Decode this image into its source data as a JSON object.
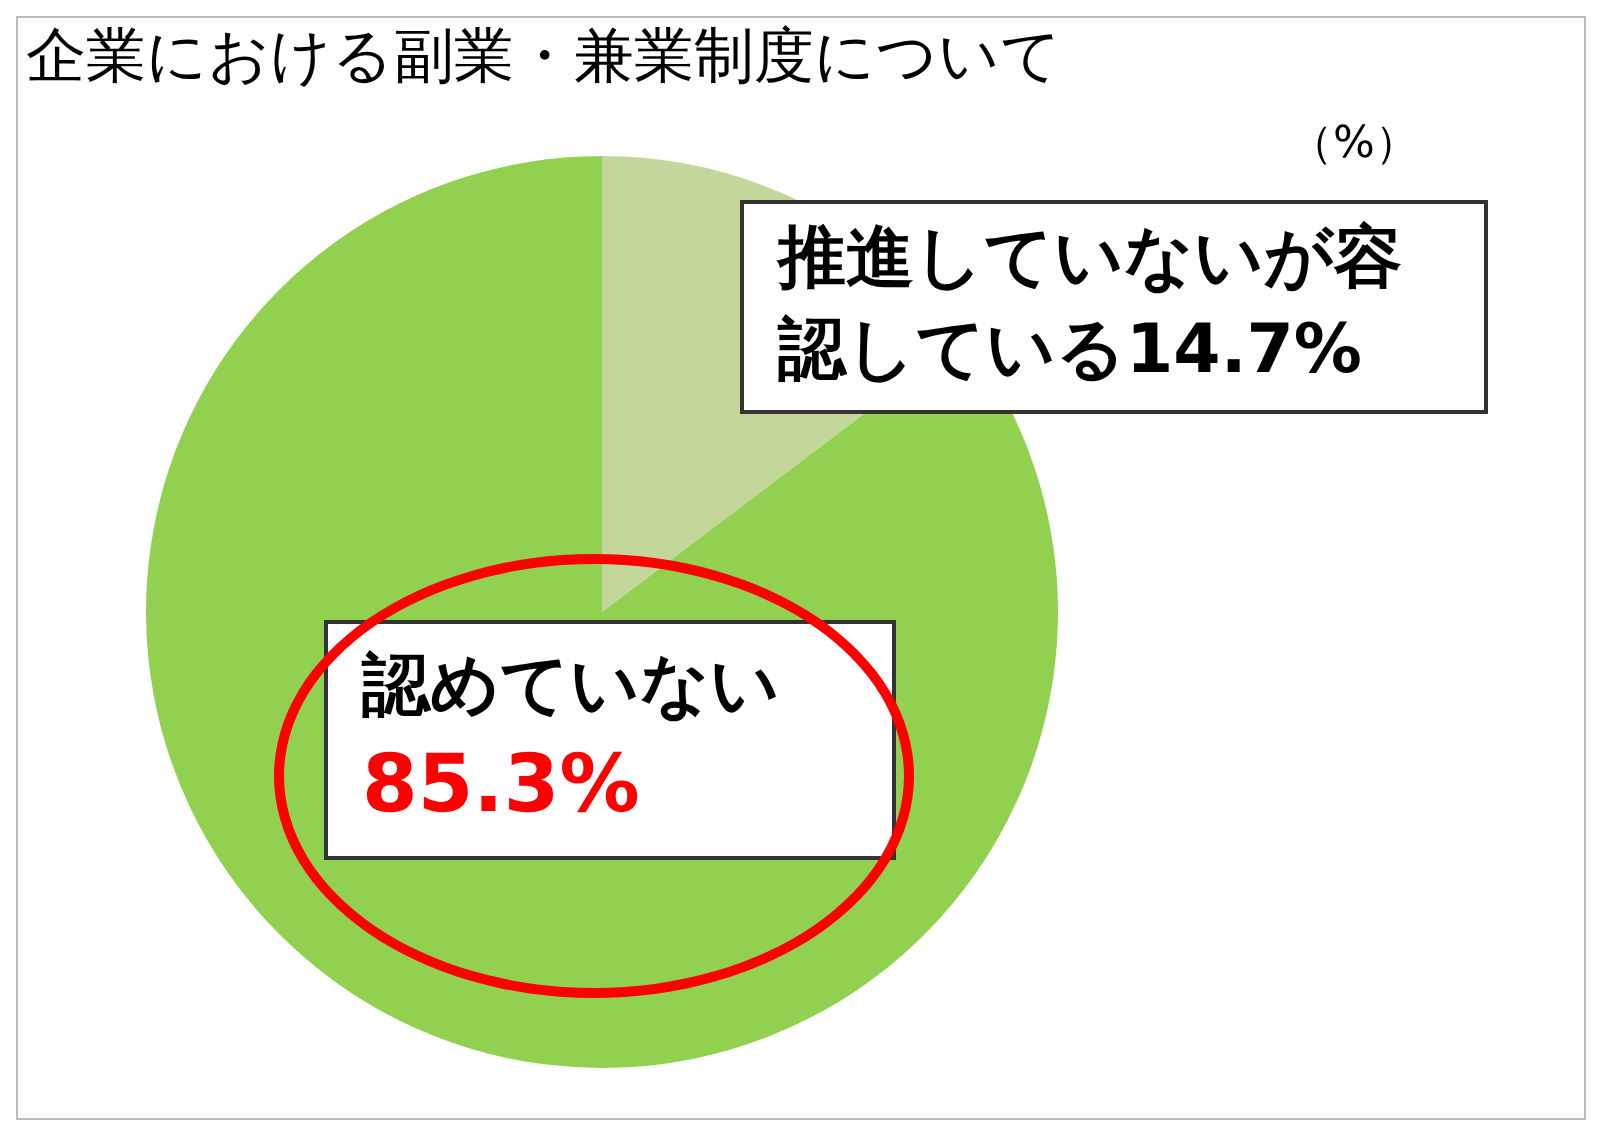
{
  "chart_data": {
    "type": "pie",
    "title": "企業における副業・兼業制度について",
    "categories": [
      "推進していないが容認している",
      "認めていない"
    ],
    "values": [
      14.7,
      85.3
    ],
    "colors": [
      "#c4d79b",
      "#92d050"
    ],
    "value_labels": [
      "14.7%",
      "85.3%"
    ],
    "annotations": [
      "（%）"
    ],
    "legend": false
  }
}
